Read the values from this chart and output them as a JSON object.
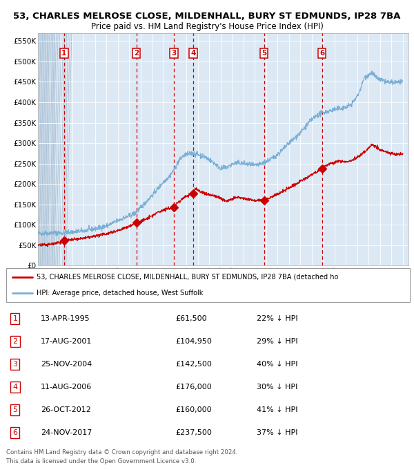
{
  "title_line1": "53, CHARLES MELROSE CLOSE, MILDENHALL, BURY ST EDMUNDS, IP28 7BA",
  "title_line2": "Price paid vs. HM Land Registry's House Price Index (HPI)",
  "xlim_start": 1993.0,
  "xlim_end": 2025.5,
  "ylim": [
    0,
    570000
  ],
  "yticks": [
    0,
    50000,
    100000,
    150000,
    200000,
    250000,
    300000,
    350000,
    400000,
    450000,
    500000,
    550000
  ],
  "ytick_labels": [
    "£0",
    "£50K",
    "£100K",
    "£150K",
    "£200K",
    "£250K",
    "£300K",
    "£350K",
    "£400K",
    "£450K",
    "£500K",
    "£550K"
  ],
  "sales": [
    {
      "num": 1,
      "date_num": 1995.28,
      "price": 61500
    },
    {
      "num": 2,
      "date_num": 2001.62,
      "price": 104950
    },
    {
      "num": 3,
      "date_num": 2004.9,
      "price": 142500
    },
    {
      "num": 4,
      "date_num": 2006.62,
      "price": 176000
    },
    {
      "num": 5,
      "date_num": 2012.82,
      "price": 160000
    },
    {
      "num": 6,
      "date_num": 2017.9,
      "price": 237500
    }
  ],
  "red_line_color": "#cc0000",
  "blue_line_color": "#7bafd4",
  "dashed_line_color": "#cc0000",
  "bg_color": "#dce9f5",
  "hatch_end": 1994.5,
  "grid_color": "#ffffff",
  "legend_label_red": "53, CHARLES MELROSE CLOSE, MILDENHALL, BURY ST EDMUNDS, IP28 7BA (detached ho",
  "legend_label_blue": "HPI: Average price, detached house, West Suffolk",
  "footer_line1": "Contains HM Land Registry data © Crown copyright and database right 2024.",
  "footer_line2": "This data is licensed under the Open Government Licence v3.0.",
  "table_rows": [
    {
      "num": 1,
      "date": "13-APR-1995",
      "price": "£61,500",
      "hpi": "22% ↓ HPI"
    },
    {
      "num": 2,
      "date": "17-AUG-2001",
      "price": "£104,950",
      "hpi": "29% ↓ HPI"
    },
    {
      "num": 3,
      "date": "25-NOV-2004",
      "price": "£142,500",
      "hpi": "40% ↓ HPI"
    },
    {
      "num": 4,
      "date": "11-AUG-2006",
      "price": "£176,000",
      "hpi": "30% ↓ HPI"
    },
    {
      "num": 5,
      "date": "26-OCT-2012",
      "price": "£160,000",
      "hpi": "41% ↓ HPI"
    },
    {
      "num": 6,
      "date": "24-NOV-2017",
      "price": "£237,500",
      "hpi": "37% ↓ HPI"
    }
  ],
  "hpi_anchors": [
    [
      1993.0,
      78000
    ],
    [
      1994.0,
      80000
    ],
    [
      1995.0,
      80000
    ],
    [
      1996.0,
      82000
    ],
    [
      1997.0,
      85000
    ],
    [
      1998.0,
      90000
    ],
    [
      1999.0,
      97000
    ],
    [
      2000.0,
      110000
    ],
    [
      2001.0,
      122000
    ],
    [
      2001.5,
      128000
    ],
    [
      2002.0,
      142000
    ],
    [
      2002.5,
      157000
    ],
    [
      2003.0,
      172000
    ],
    [
      2003.5,
      188000
    ],
    [
      2004.0,
      205000
    ],
    [
      2004.5,
      218000
    ],
    [
      2005.0,
      238000
    ],
    [
      2005.3,
      255000
    ],
    [
      2005.7,
      268000
    ],
    [
      2006.0,
      272000
    ],
    [
      2006.5,
      275000
    ],
    [
      2007.0,
      272000
    ],
    [
      2007.5,
      268000
    ],
    [
      2008.0,
      260000
    ],
    [
      2008.5,
      250000
    ],
    [
      2009.0,
      238000
    ],
    [
      2009.5,
      240000
    ],
    [
      2010.0,
      248000
    ],
    [
      2010.5,
      252000
    ],
    [
      2011.0,
      250000
    ],
    [
      2011.5,
      248000
    ],
    [
      2012.0,
      245000
    ],
    [
      2012.5,
      248000
    ],
    [
      2013.0,
      255000
    ],
    [
      2013.5,
      262000
    ],
    [
      2014.0,
      272000
    ],
    [
      2014.5,
      285000
    ],
    [
      2015.0,
      300000
    ],
    [
      2015.5,
      312000
    ],
    [
      2016.0,
      325000
    ],
    [
      2016.5,
      342000
    ],
    [
      2017.0,
      358000
    ],
    [
      2017.5,
      368000
    ],
    [
      2018.0,
      375000
    ],
    [
      2018.5,
      378000
    ],
    [
      2019.0,
      382000
    ],
    [
      2019.5,
      385000
    ],
    [
      2020.0,
      388000
    ],
    [
      2020.5,
      395000
    ],
    [
      2021.0,
      415000
    ],
    [
      2021.3,
      435000
    ],
    [
      2021.6,
      460000
    ],
    [
      2022.0,
      468000
    ],
    [
      2022.3,
      472000
    ],
    [
      2022.6,
      462000
    ],
    [
      2023.0,
      455000
    ],
    [
      2023.5,
      450000
    ],
    [
      2024.0,
      448000
    ],
    [
      2024.5,
      450000
    ],
    [
      2025.0,
      448000
    ]
  ],
  "red_anchors": [
    [
      1993.0,
      50000
    ],
    [
      1994.0,
      52000
    ],
    [
      1995.0,
      58000
    ],
    [
      1995.28,
      61500
    ],
    [
      1996.0,
      63000
    ],
    [
      1997.0,
      67000
    ],
    [
      1998.0,
      72000
    ],
    [
      1999.0,
      78000
    ],
    [
      2000.0,
      86000
    ],
    [
      2001.0,
      96000
    ],
    [
      2001.62,
      104950
    ],
    [
      2002.0,
      108000
    ],
    [
      2002.5,
      114000
    ],
    [
      2003.0,
      122000
    ],
    [
      2003.5,
      130000
    ],
    [
      2004.0,
      137000
    ],
    [
      2004.9,
      142500
    ],
    [
      2005.0,
      148000
    ],
    [
      2005.3,
      155000
    ],
    [
      2005.6,
      162000
    ],
    [
      2005.8,
      167000
    ],
    [
      2006.0,
      170000
    ],
    [
      2006.62,
      176000
    ],
    [
      2006.8,
      190000
    ],
    [
      2007.0,
      185000
    ],
    [
      2007.3,
      180000
    ],
    [
      2007.8,
      175000
    ],
    [
      2008.2,
      172000
    ],
    [
      2008.6,
      170000
    ],
    [
      2009.0,
      165000
    ],
    [
      2009.5,
      158000
    ],
    [
      2010.0,
      162000
    ],
    [
      2010.5,
      167000
    ],
    [
      2011.0,
      165000
    ],
    [
      2011.5,
      162000
    ],
    [
      2012.0,
      160000
    ],
    [
      2012.82,
      160000
    ],
    [
      2013.0,
      162000
    ],
    [
      2013.5,
      168000
    ],
    [
      2014.0,
      175000
    ],
    [
      2014.5,
      182000
    ],
    [
      2015.0,
      190000
    ],
    [
      2015.5,
      198000
    ],
    [
      2016.0,
      206000
    ],
    [
      2016.5,
      215000
    ],
    [
      2017.0,
      222000
    ],
    [
      2017.9,
      237500
    ],
    [
      2018.0,
      242000
    ],
    [
      2018.5,
      248000
    ],
    [
      2019.0,
      252000
    ],
    [
      2019.5,
      256000
    ],
    [
      2020.0,
      254000
    ],
    [
      2020.5,
      258000
    ],
    [
      2021.0,
      265000
    ],
    [
      2021.5,
      275000
    ],
    [
      2022.0,
      288000
    ],
    [
      2022.3,
      298000
    ],
    [
      2022.6,
      292000
    ],
    [
      2023.0,
      283000
    ],
    [
      2023.5,
      278000
    ],
    [
      2024.0,
      275000
    ],
    [
      2024.5,
      272000
    ],
    [
      2025.0,
      274000
    ]
  ]
}
